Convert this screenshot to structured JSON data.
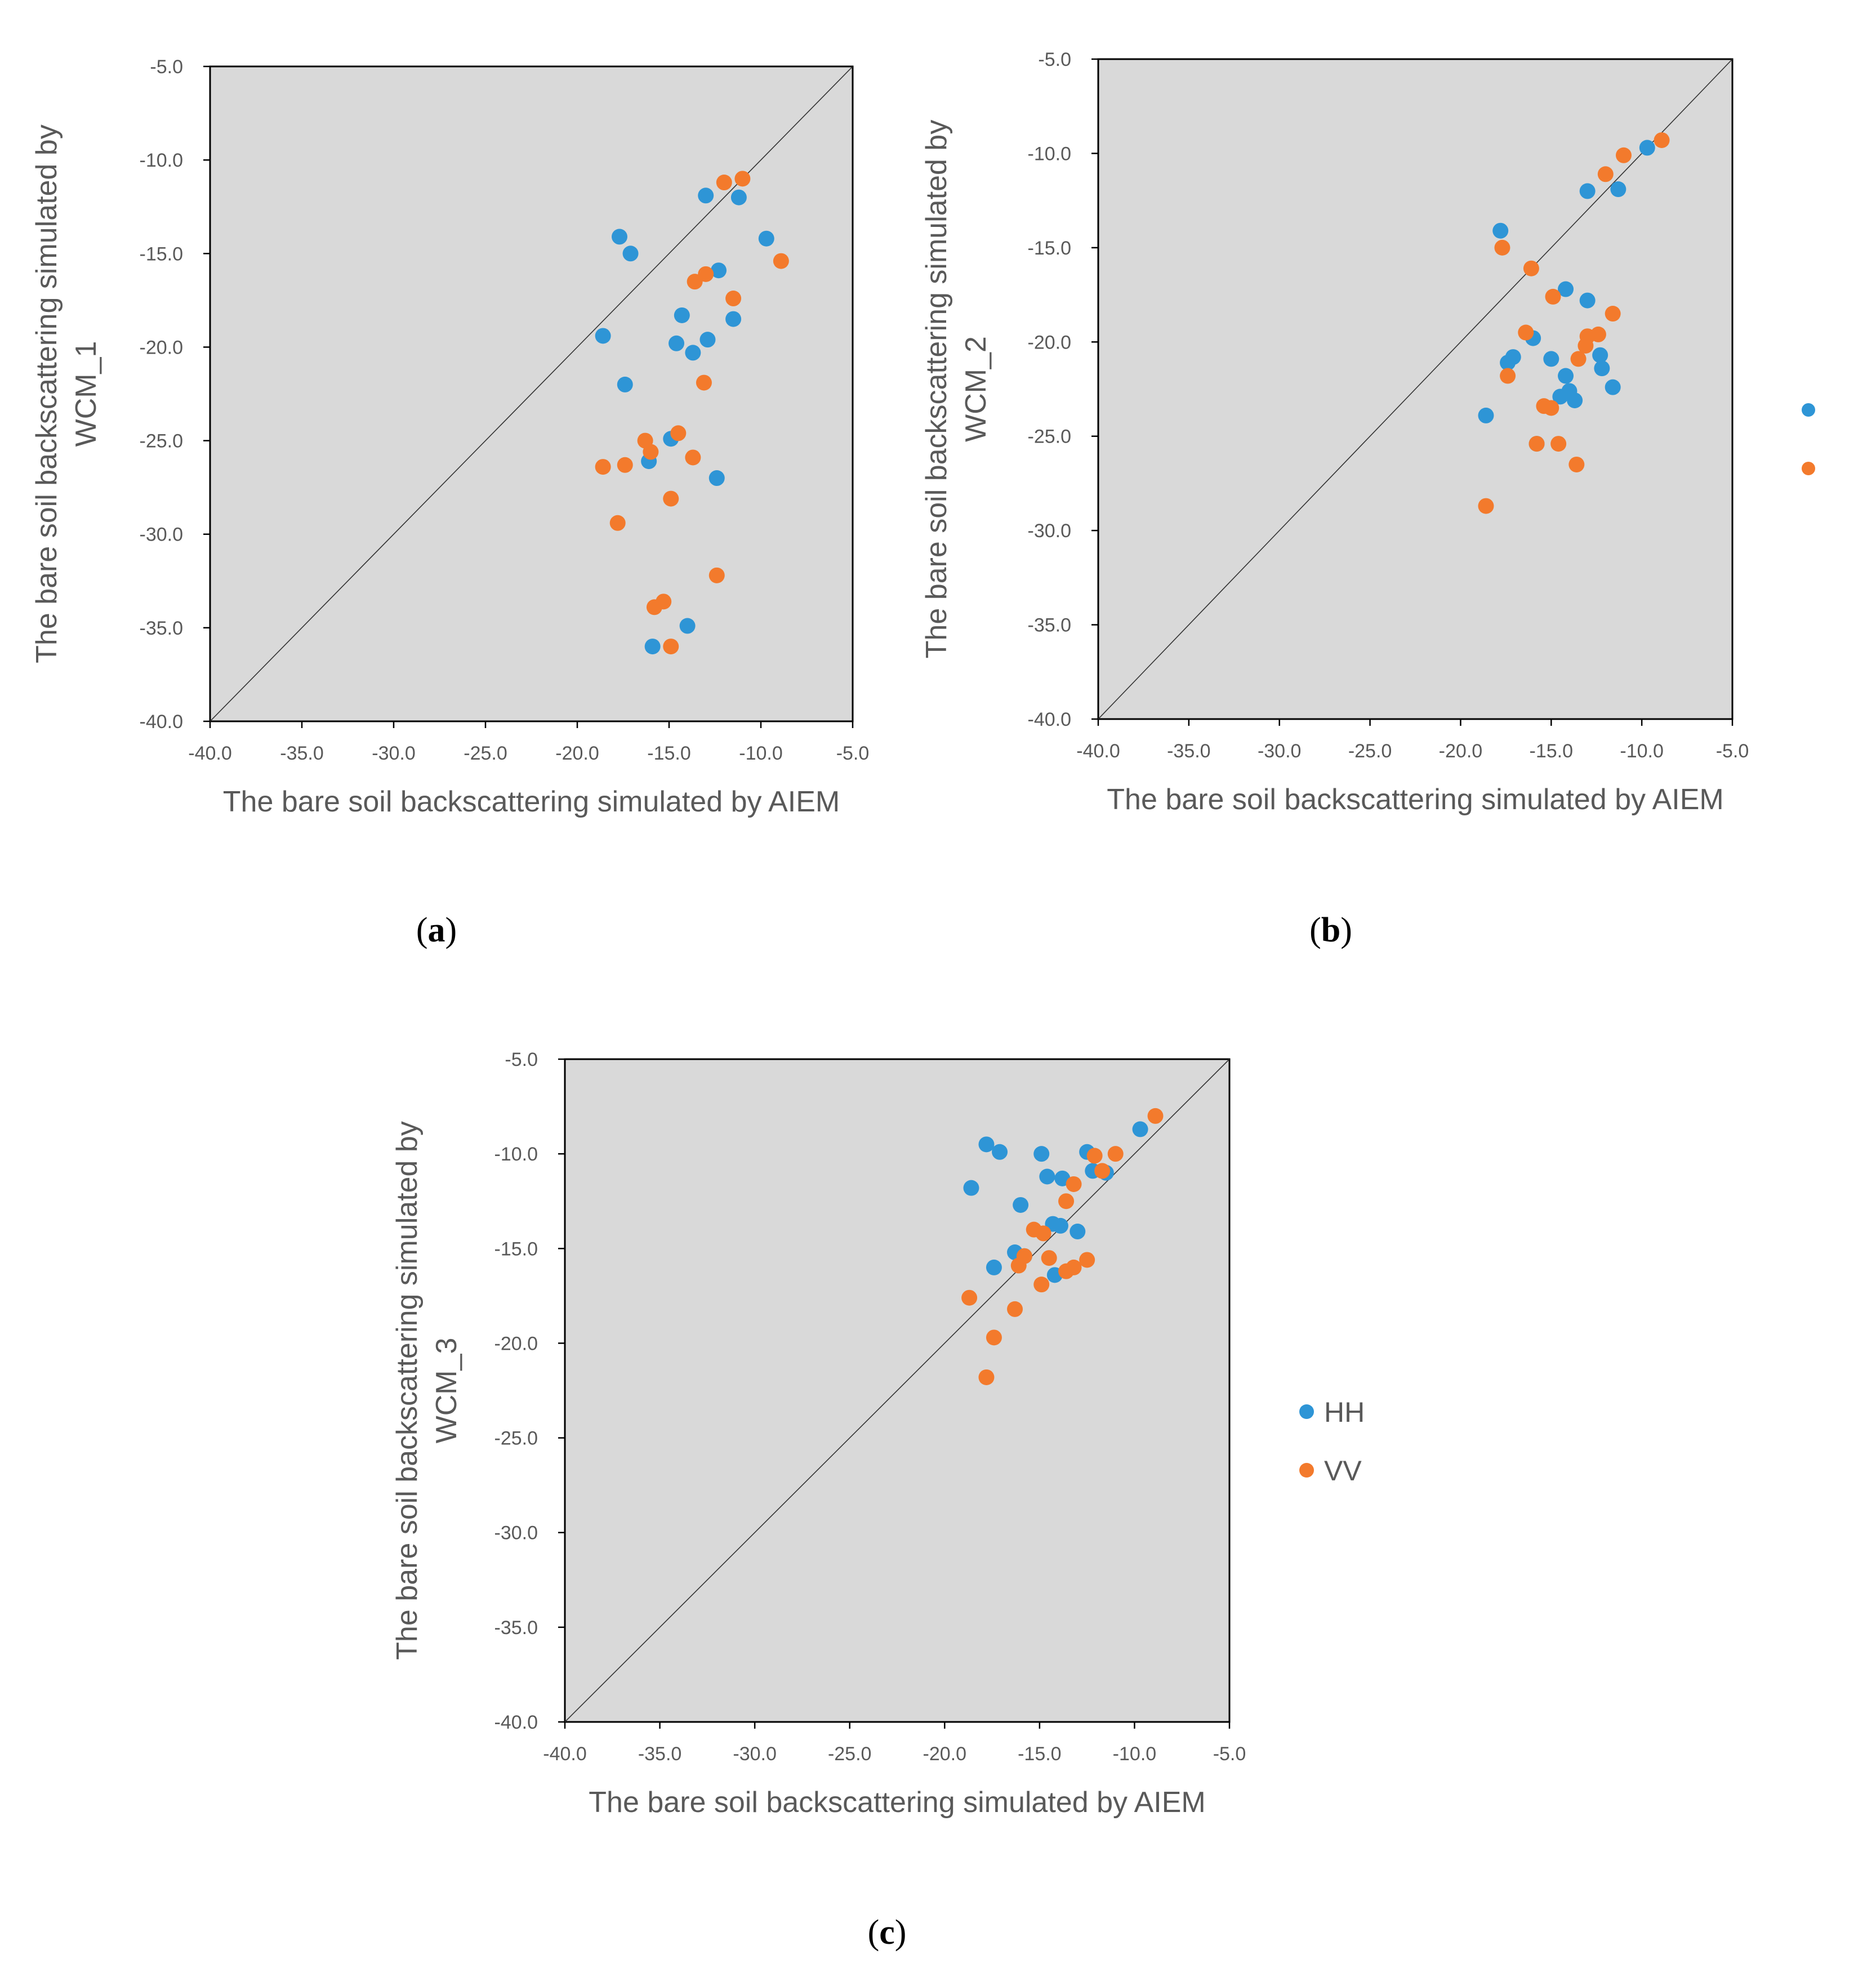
{
  "colors": {
    "HH": "#2E95D6",
    "VV": "#F37A2C",
    "plot_bg": "#D9D9D9",
    "axis": "#000000",
    "text": "#595959"
  },
  "legend": [
    {
      "key": "HH",
      "label": "HH"
    },
    {
      "key": "VV",
      "label": "VV"
    }
  ],
  "chart_data": [
    {
      "id": "a",
      "panel_label": "a",
      "type": "scatter",
      "xlabel": "The bare soil backscattering simulated by AIEM",
      "ylabel_lines": [
        "The bare soil backscattering simulated by",
        "WCM_1"
      ],
      "xlim": [
        -40,
        -5
      ],
      "ylim": [
        -40,
        -5
      ],
      "xticks": [
        "-40.0",
        "-35.0",
        "-30.0",
        "-25.0",
        "-20.0",
        "-15.0",
        "-10.0",
        "-5.0"
      ],
      "yticks": [
        "-40.0",
        "-35.0",
        "-30.0",
        "-25.0",
        "-20.0",
        "-15.0",
        "-10.0",
        "-5.0"
      ],
      "reference_line": "1:1",
      "series": [
        {
          "name": "HH",
          "points": [
            [
              -13,
              -11.9
            ],
            [
              -11.2,
              -12
            ],
            [
              -17.7,
              -14.1
            ],
            [
              -17.1,
              -15
            ],
            [
              -9.7,
              -14.2
            ],
            [
              -12.3,
              -15.9
            ],
            [
              -14.3,
              -18.3
            ],
            [
              -11.5,
              -18.5
            ],
            [
              -18.6,
              -19.4
            ],
            [
              -14.6,
              -19.8
            ],
            [
              -12.9,
              -19.6
            ],
            [
              -13.7,
              -20.3
            ],
            [
              -17.4,
              -22
            ],
            [
              -14.9,
              -24.9
            ],
            [
              -16.1,
              -26.1
            ],
            [
              -12.4,
              -27
            ],
            [
              -14,
              -34.9
            ],
            [
              -15.9,
              -36
            ]
          ]
        },
        {
          "name": "VV",
          "points": [
            [
              -12,
              -11.2
            ],
            [
              -11,
              -11
            ],
            [
              -13,
              -16.1
            ],
            [
              -13.6,
              -16.5
            ],
            [
              -8.9,
              -15.4
            ],
            [
              -11.5,
              -17.4
            ],
            [
              -13.1,
              -21.9
            ],
            [
              -14.5,
              -24.6
            ],
            [
              -16.3,
              -25
            ],
            [
              -16,
              -25.6
            ],
            [
              -13.7,
              -25.9
            ],
            [
              -18.6,
              -26.4
            ],
            [
              -17.4,
              -26.3
            ],
            [
              -14.9,
              -28.1
            ],
            [
              -17.8,
              -29.4
            ],
            [
              -12.4,
              -32.2
            ],
            [
              -15.3,
              -33.6
            ],
            [
              -15.8,
              -33.9
            ],
            [
              -14.9,
              -36
            ]
          ]
        }
      ]
    },
    {
      "id": "b",
      "panel_label": "b",
      "type": "scatter",
      "xlabel": "The bare soil backscattering simulated by AIEM",
      "ylabel_lines": [
        "The bare soil backscattering simulated by",
        "WCM_2"
      ],
      "xlim": [
        -40,
        -5
      ],
      "ylim": [
        -40,
        -5
      ],
      "xticks": [
        "-40.0",
        "-35.0",
        "-30.0",
        "-25.0",
        "-20.0",
        "-15.0",
        "-10.0",
        "-5.0"
      ],
      "yticks": [
        "-40.0",
        "-35.0",
        "-30.0",
        "-25.0",
        "-20.0",
        "-15.0",
        "-10.0",
        "-5.0"
      ],
      "reference_line": "1:1",
      "series": [
        {
          "name": "HH",
          "points": [
            [
              -9.7,
              -9.7
            ],
            [
              -13,
              -12
            ],
            [
              -11.3,
              -11.9
            ],
            [
              -17.8,
              -14.1
            ],
            [
              -14.2,
              -17.2
            ],
            [
              -13,
              -17.8
            ],
            [
              -16,
              -19.8
            ],
            [
              -17.1,
              -20.8
            ],
            [
              -17.4,
              -21.1
            ],
            [
              -15,
              -20.9
            ],
            [
              -12.3,
              -20.7
            ],
            [
              -12.2,
              -21.4
            ],
            [
              -14.2,
              -21.8
            ],
            [
              -14,
              -22.6
            ],
            [
              -14.5,
              -22.9
            ],
            [
              -13.7,
              -23.1
            ],
            [
              -11.6,
              -22.4
            ],
            [
              -18.6,
              -23.9
            ],
            [
              -15.8,
              -25.4
            ]
          ]
        },
        {
          "name": "VV",
          "points": [
            [
              -8.9,
              -9.3
            ],
            [
              -11,
              -10.1
            ],
            [
              -12,
              -11.1
            ],
            [
              -17.7,
              -15
            ],
            [
              -16.1,
              -16.1
            ],
            [
              -14.9,
              -17.6
            ],
            [
              -11.6,
              -18.5
            ],
            [
              -16.4,
              -19.5
            ],
            [
              -12.4,
              -19.6
            ],
            [
              -13,
              -19.7
            ],
            [
              -13.1,
              -20.2
            ],
            [
              -13.5,
              -20.9
            ],
            [
              -17.4,
              -21.8
            ],
            [
              -15.4,
              -23.4
            ],
            [
              -15,
              -23.5
            ],
            [
              -15.8,
              -25.4
            ],
            [
              -14.6,
              -25.4
            ],
            [
              -13.6,
              -26.5
            ],
            [
              -18.6,
              -28.7
            ]
          ]
        }
      ]
    },
    {
      "id": "c",
      "panel_label": "c",
      "type": "scatter",
      "xlabel": "The bare soil backscattering simulated by AIEM",
      "ylabel_lines": [
        "The bare soil backscattering simulated by",
        "WCM_3"
      ],
      "xlim": [
        -40,
        -5
      ],
      "ylim": [
        -40,
        -5
      ],
      "xticks": [
        "-40.0",
        "-35.0",
        "-30.0",
        "-25.0",
        "-20.0",
        "-15.0",
        "-10.0",
        "-5.0"
      ],
      "yticks": [
        "-40.0",
        "-35.0",
        "-30.0",
        "-25.0",
        "-20.0",
        "-15.0",
        "-10.0",
        "-5.0"
      ],
      "reference_line": "1:1",
      "series": [
        {
          "name": "HH",
          "points": [
            [
              -17.8,
              -9.5
            ],
            [
              -17.1,
              -9.9
            ],
            [
              -14.9,
              -10
            ],
            [
              -12.5,
              -9.9
            ],
            [
              -9.7,
              -8.7
            ],
            [
              -12.2,
              -10.9
            ],
            [
              -11.5,
              -11
            ],
            [
              -14.6,
              -11.2
            ],
            [
              -13.8,
              -11.3
            ],
            [
              -18.6,
              -11.8
            ],
            [
              -16,
              -12.7
            ],
            [
              -14.3,
              -13.7
            ],
            [
              -13.9,
              -13.8
            ],
            [
              -13,
              -14.1
            ],
            [
              -16.3,
              -15.2
            ],
            [
              -15.8,
              -15.4
            ],
            [
              -17.4,
              -16
            ],
            [
              -14.2,
              -16.4
            ]
          ]
        },
        {
          "name": "VV",
          "points": [
            [
              -8.9,
              -8
            ],
            [
              -11,
              -10
            ],
            [
              -12.1,
              -10.1
            ],
            [
              -11.7,
              -10.9
            ],
            [
              -13.2,
              -11.6
            ],
            [
              -13.6,
              -12.5
            ],
            [
              -15.3,
              -14
            ],
            [
              -14.8,
              -14.2
            ],
            [
              -15.8,
              -15.4
            ],
            [
              -14.5,
              -15.5
            ],
            [
              -12.5,
              -15.6
            ],
            [
              -13.2,
              -16
            ],
            [
              -13.6,
              -16.2
            ],
            [
              -16.1,
              -15.9
            ],
            [
              -14.9,
              -16.9
            ],
            [
              -18.7,
              -17.6
            ],
            [
              -16.3,
              -18.2
            ],
            [
              -17.4,
              -19.7
            ],
            [
              -17.8,
              -21.8
            ]
          ]
        }
      ]
    }
  ]
}
